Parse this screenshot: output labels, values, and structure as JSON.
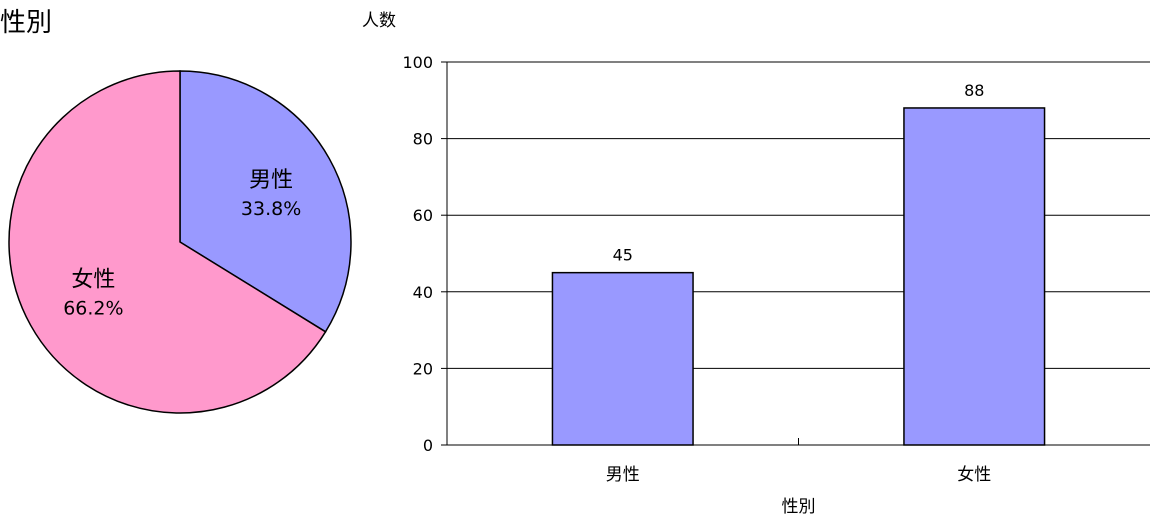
{
  "title": "性別",
  "chart_data": [
    {
      "type": "pie",
      "slices": [
        {
          "label": "男性",
          "value": 33.8,
          "display": "33.8%",
          "color": "#9999FF"
        },
        {
          "label": "女性",
          "value": 66.2,
          "display": "66.2%",
          "color": "#FF99CC"
        }
      ]
    },
    {
      "type": "bar",
      "categories": [
        "男性",
        "女性"
      ],
      "values": [
        45,
        88
      ],
      "value_labels": [
        "45",
        "88"
      ],
      "bar_color": "#9999FF",
      "xlabel": "性別",
      "ylabel": "人数",
      "ylim": [
        0,
        100
      ],
      "yticks": [
        "0",
        "20",
        "40",
        "60",
        "80",
        "100"
      ],
      "grid": true
    }
  ]
}
